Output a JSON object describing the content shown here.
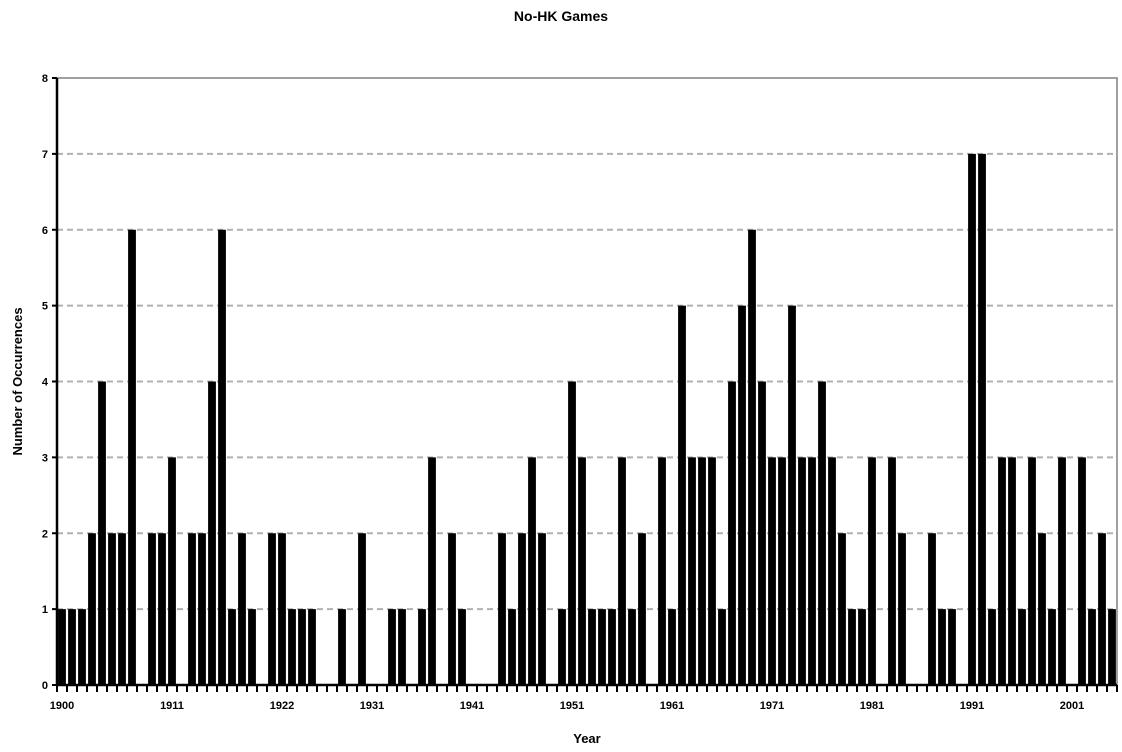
{
  "chart_data": {
    "type": "bar",
    "title": "No-HK Games",
    "xlabel": "Year",
    "ylabel": "Number of Occurrences",
    "ylim": [
      0,
      8
    ],
    "yticks": [
      0,
      1,
      2,
      3,
      4,
      5,
      6,
      7,
      8
    ],
    "x_start": 1900,
    "x_end": 2005,
    "x_tick_labels": [
      "1900",
      "1911",
      "1922",
      "1931",
      "1941",
      "1951",
      "1961",
      "1971",
      "1981",
      "1991",
      "2001"
    ],
    "grid": "horizontal dashed",
    "legend": "none",
    "bar_color": "#000000",
    "categories": [
      "1900",
      "1901",
      "1902",
      "1903",
      "1904",
      "1905",
      "1906",
      "1907",
      "1908",
      "1909",
      "1910",
      "1911",
      "1912",
      "1913",
      "1914",
      "1915",
      "1916",
      "1917",
      "1918",
      "1919",
      "1920",
      "1921",
      "1922",
      "1923",
      "1924",
      "1925",
      "1926",
      "1927",
      "1928",
      "1929",
      "1930",
      "1931",
      "1932",
      "1933",
      "1934",
      "1935",
      "1936",
      "1937",
      "1938",
      "1939",
      "1940",
      "1941",
      "1942",
      "1943",
      "1944",
      "1945",
      "1946",
      "1947",
      "1948",
      "1949",
      "1950",
      "1951",
      "1952",
      "1953",
      "1954",
      "1955",
      "1956",
      "1957",
      "1958",
      "1959",
      "1960",
      "1961",
      "1962",
      "1963",
      "1964",
      "1965",
      "1966",
      "1967",
      "1968",
      "1969",
      "1970",
      "1971",
      "1972",
      "1973",
      "1974",
      "1975",
      "1976",
      "1977",
      "1978",
      "1979",
      "1980",
      "1981",
      "1982",
      "1983",
      "1984",
      "1985",
      "1986",
      "1987",
      "1988",
      "1989",
      "1990",
      "1991",
      "1992",
      "1993",
      "1994",
      "1995",
      "1996",
      "1997",
      "1998",
      "1999",
      "2000",
      "2001",
      "2002",
      "2003",
      "2004",
      "2005"
    ],
    "values": [
      1,
      1,
      1,
      2,
      4,
      2,
      2,
      6,
      0,
      2,
      2,
      3,
      0,
      2,
      2,
      4,
      6,
      1,
      2,
      1,
      0,
      2,
      2,
      1,
      1,
      1,
      0,
      0,
      1,
      0,
      2,
      0,
      0,
      1,
      1,
      0,
      1,
      3,
      0,
      2,
      1,
      0,
      0,
      0,
      2,
      1,
      2,
      3,
      2,
      0,
      1,
      4,
      3,
      1,
      1,
      1,
      3,
      1,
      2,
      0,
      3,
      1,
      5,
      3,
      3,
      3,
      1,
      4,
      5,
      6,
      4,
      3,
      3,
      5,
      3,
      3,
      4,
      3,
      2,
      1,
      1,
      3,
      0,
      3,
      2,
      0,
      0,
      2,
      1,
      1,
      0,
      7,
      7,
      1,
      3,
      3,
      1,
      3,
      2,
      1,
      3,
      0,
      3,
      1,
      2,
      1
    ]
  }
}
